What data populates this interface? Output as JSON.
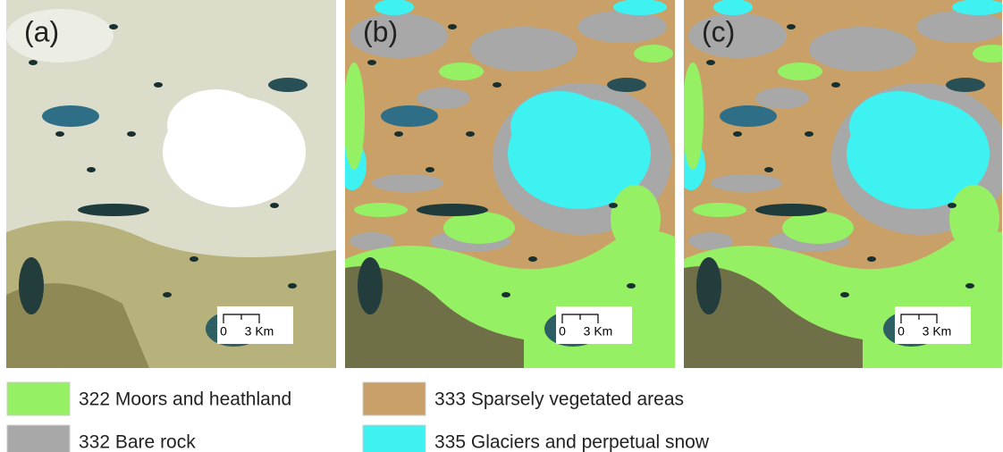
{
  "panels": [
    {
      "label": "(a)",
      "scale_start": "0",
      "scale_end": "3 Km"
    },
    {
      "label": "(b)",
      "scale_start": "0",
      "scale_end": "3 Km"
    },
    {
      "label": "(c)",
      "scale_start": "0",
      "scale_end": "3 Km"
    }
  ],
  "legend": [
    {
      "label": "322 Moors and heathland",
      "color": "#96f064"
    },
    {
      "label": "333 Sparsely vegetated areas",
      "color": "#c8a068"
    },
    {
      "label": "332 Bare rock",
      "color": "#a8a8a8"
    },
    {
      "label": "335 Glaciers and perpetual snow",
      "color": "#3ef2f2"
    }
  ]
}
